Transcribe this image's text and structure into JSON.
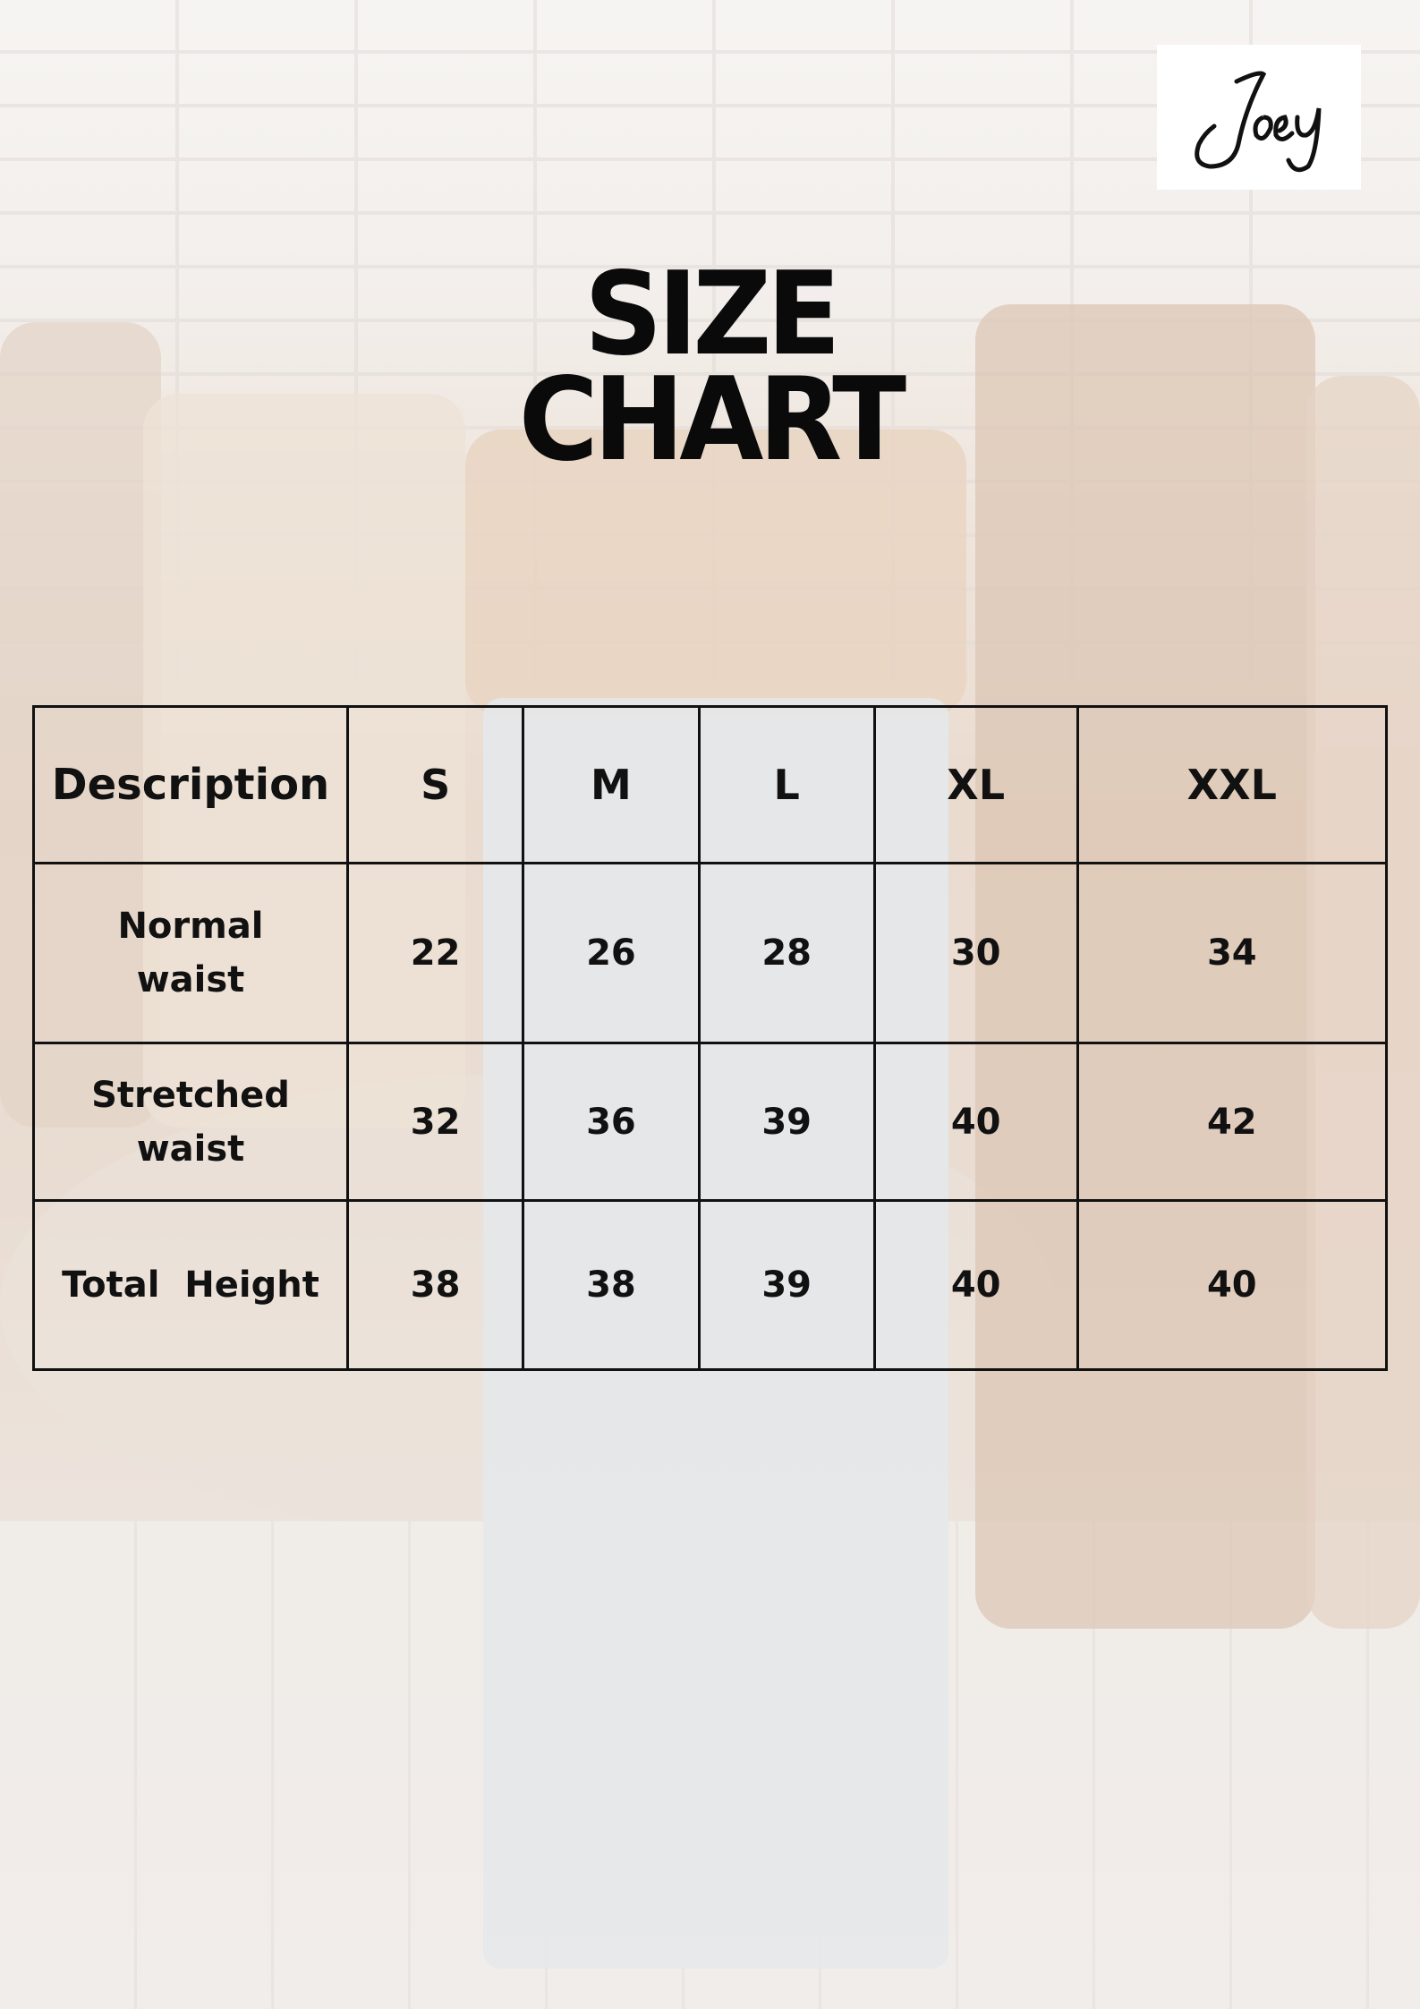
{
  "brand": {
    "logo_text": "Joey"
  },
  "title": {
    "line1": "SIZE",
    "line2": "CHART"
  },
  "size_table": {
    "headers": [
      "Description",
      "S",
      "M",
      "L",
      "XL",
      "XXL"
    ],
    "rows": [
      {
        "label_line1": "Normal",
        "label_line2": "waist",
        "values": [
          "22",
          "26",
          "28",
          "30",
          "34"
        ]
      },
      {
        "label_line1": "Stretched",
        "label_line2": "waist",
        "values": [
          "32",
          "36",
          "39",
          "40",
          "42"
        ]
      },
      {
        "label_line1": "Total  Height",
        "label_line2": "",
        "values": [
          "38",
          "38",
          "39",
          "40",
          "40"
        ]
      }
    ]
  }
}
